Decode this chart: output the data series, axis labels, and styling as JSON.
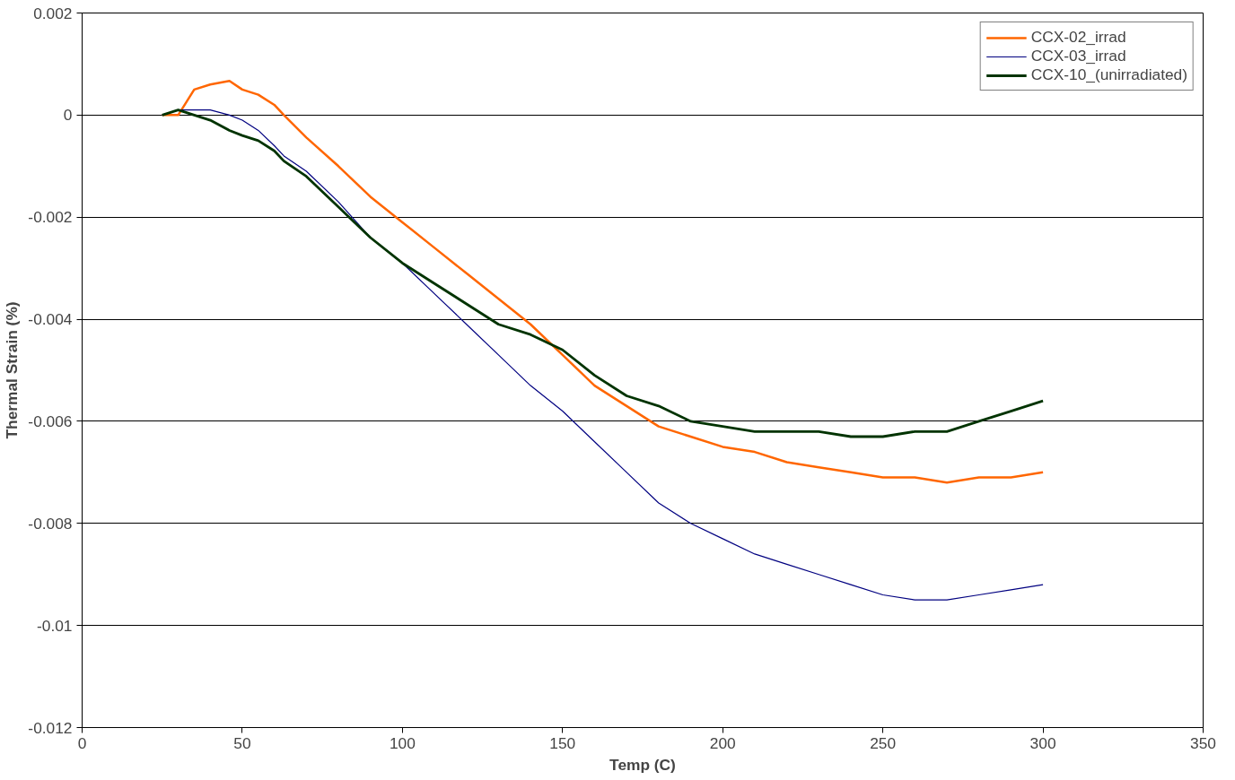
{
  "chart_data": {
    "type": "line",
    "xlabel": "Temp (C)",
    "ylabel": "Thermal Strain (%)",
    "x": [
      25,
      30,
      35,
      40,
      46,
      50,
      55,
      60,
      63,
      70,
      80,
      90,
      100,
      110,
      120,
      130,
      140,
      150,
      160,
      170,
      180,
      190,
      200,
      210,
      220,
      230,
      240,
      250,
      260,
      270,
      280,
      290,
      300
    ],
    "series": [
      {
        "name": "CCX-02_irrad",
        "color": "#ff6600",
        "values": [
          0,
          0,
          0.0005,
          0.0006,
          0.00067,
          0.0005,
          0.0004,
          0.0002,
          0,
          -0.00044,
          -0.001,
          -0.0016,
          -0.0021,
          -0.0026,
          -0.0031,
          -0.0036,
          -0.0041,
          -0.0047,
          -0.0053,
          -0.0057,
          -0.0061,
          -0.0063,
          -0.0065,
          -0.0066,
          -0.0068,
          -0.0069,
          -0.007,
          -0.0071,
          -0.0071,
          -0.0072,
          -0.0071,
          -0.0071,
          -0.007
        ]
      },
      {
        "name": "CCX-03_irrad",
        "color": "#000080",
        "values": [
          0,
          0.0001,
          0.0001,
          0.0001,
          0,
          -0.0001,
          -0.0003,
          -0.0006,
          -0.0008,
          -0.0011,
          -0.0017,
          -0.0024,
          -0.0029,
          -0.0035,
          -0.0041,
          -0.0047,
          -0.0053,
          -0.0058,
          -0.0064,
          -0.007,
          -0.0076,
          -0.008,
          -0.0083,
          -0.0086,
          -0.0088,
          -0.009,
          -0.0092,
          -0.0094,
          -0.0095,
          -0.0095,
          -0.0094,
          -0.0093,
          -0.0092
        ]
      },
      {
        "name": "CCX-10_(unirradiated)",
        "color": "#003300",
        "values": [
          0,
          0.0001,
          0,
          -0.0001,
          -0.0003,
          -0.0004,
          -0.0005,
          -0.0007,
          -0.0009,
          -0.0012,
          -0.0018,
          -0.0024,
          -0.0029,
          -0.0033,
          -0.0037,
          -0.0041,
          -0.0043,
          -0.0046,
          -0.0051,
          -0.0055,
          -0.0057,
          -0.006,
          -0.0061,
          -0.0062,
          -0.0062,
          -0.0062,
          -0.0063,
          -0.0063,
          -0.0062,
          -0.0062,
          -0.006,
          -0.0058,
          -0.0056
        ]
      }
    ],
    "xlim": [
      0,
      350
    ],
    "xticks": [
      0,
      50,
      100,
      150,
      200,
      250,
      300,
      350
    ],
    "ylim": [
      -0.012,
      0.002
    ],
    "yticks": [
      {
        "value": -0.012,
        "label": "-0.012"
      },
      {
        "value": -0.01,
        "label": "-0.01"
      },
      {
        "value": -0.008,
        "label": "-0.008"
      },
      {
        "value": -0.006,
        "label": "-0.006"
      },
      {
        "value": -0.004,
        "label": "-0.004"
      },
      {
        "value": -0.002,
        "label": "-0.002"
      },
      0,
      {
        "value": 0.002,
        "label": "0.002"
      }
    ],
    "grid": "y",
    "legend": "top right",
    "marker": "none",
    "line_style": "solid"
  }
}
